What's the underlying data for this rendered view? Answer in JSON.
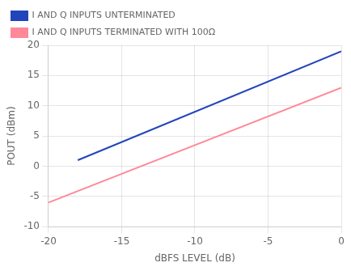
{
  "chart_data": {
    "type": "line",
    "xlabel": "dBFS LEVEL (dB)",
    "ylabel": "POUT (dBm)",
    "series": [
      {
        "name": "I AND Q INPUTS UNTERMINATED",
        "color": "#2244bb",
        "x": [
          -18,
          0
        ],
        "values": [
          1,
          19
        ]
      },
      {
        "name": "I AND Q INPUTS TERMINATED WITH 100Ω",
        "color": "#ff8899",
        "x": [
          -20,
          0
        ],
        "values": [
          -6,
          13
        ]
      }
    ],
    "xlim": [
      -20,
      0
    ],
    "ylim": [
      -10,
      20
    ],
    "xticks": [
      -20,
      -15,
      -10,
      -5,
      0
    ],
    "yticks": [
      -10,
      -5,
      0,
      5,
      10,
      15,
      20
    ],
    "grid": true,
    "legend": "upper left"
  }
}
